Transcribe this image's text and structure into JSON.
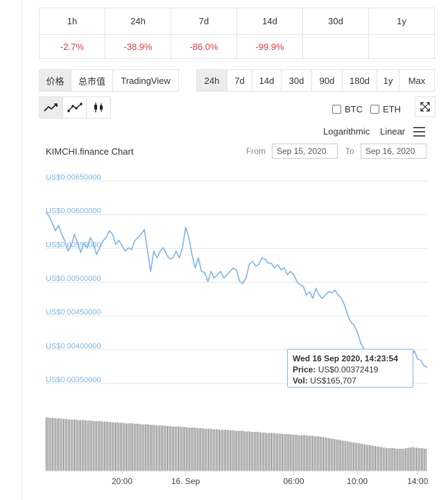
{
  "performance": {
    "periods": [
      "1h",
      "24h",
      "7d",
      "14d",
      "30d",
      "1y"
    ],
    "changes": [
      "-2.7%",
      "-38.9%",
      "-86.0%",
      "-99.9%",
      "",
      ""
    ]
  },
  "view_tabs": [
    "价格",
    "总市值",
    "TradingView"
  ],
  "range_tabs": [
    "24h",
    "7d",
    "14d",
    "30d",
    "90d",
    "180d",
    "1y",
    "Max"
  ],
  "chart_types": [
    "line-chart-icon",
    "line-points-chart-icon",
    "candlestick-chart-icon"
  ],
  "compare": {
    "btc": "BTC",
    "eth": "ETH"
  },
  "scale": {
    "log": "Logarithmic",
    "linear": "Linear"
  },
  "chart_title": "KIMCHI.finance Chart",
  "date_range": {
    "from_label": "From",
    "from": "Sep 15, 2020",
    "to_label": "To",
    "to": "Sep 16, 2020"
  },
  "tooltip": {
    "date": "Wed 16 Sep 2020, 14:23:54",
    "price_label": "Price:",
    "price": "US$0.00372419",
    "vol_label": "Vol:",
    "vol": "US$165,707"
  },
  "colors": {
    "line": "#7cb5ec",
    "negative": "#e23d3d",
    "volume": "#666666"
  },
  "chart_data": {
    "type": "line",
    "x_axis": {
      "ticks": [
        "20:00",
        "16. Sep",
        "06:00",
        "10:00",
        "14:00"
      ]
    },
    "y_axis": {
      "ticks": [
        "US$0.00650000",
        "US$0.00600000",
        "US$0.00550000",
        "US$0.00500000",
        "US$0.00450000",
        "US$0.00400000",
        "US$0.00350000"
      ],
      "ylim": [
        0.0035,
        0.0065
      ]
    },
    "series": [
      {
        "x_hours": [
          0,
          0.2,
          0.4,
          0.6,
          0.8,
          1.0,
          1.2,
          1.4,
          1.6,
          1.8,
          2.0,
          2.2,
          2.4,
          2.6,
          2.8,
          3.0,
          3.2,
          3.4,
          3.6,
          3.8,
          4.0,
          4.2,
          4.4,
          4.6,
          4.8,
          5.0,
          5.2,
          5.4,
          5.6,
          5.8,
          6.0,
          6.2,
          6.4,
          6.6,
          6.8,
          7.0,
          7.2,
          7.4,
          7.6,
          7.8,
          8.0,
          8.2,
          8.4,
          8.6,
          8.8,
          9.0,
          9.2,
          9.4,
          9.6,
          9.8,
          10.0,
          10.2,
          10.4,
          10.6,
          10.8,
          11.0,
          11.2,
          11.4,
          11.6,
          11.8,
          12.0,
          12.2,
          12.4,
          12.6,
          12.8,
          13.0,
          13.2,
          13.4,
          13.6,
          13.8,
          14.0,
          14.2,
          14.4,
          14.6,
          14.8,
          15.0,
          15.2,
          15.4,
          15.6,
          15.8,
          16.0,
          16.2,
          16.4,
          16.6,
          16.8,
          17.0,
          17.2,
          17.4,
          17.6,
          17.8,
          18.0,
          18.2,
          18.4,
          18.6,
          18.8,
          19.0,
          19.2,
          19.4,
          19.6,
          19.8,
          20.0,
          20.2,
          20.4,
          20.6,
          20.8,
          21.0,
          21.2,
          21.4,
          21.6,
          21.8,
          22.0,
          22.2,
          22.4,
          22.6,
          22.8,
          23.0,
          23.2,
          23.4,
          23.6,
          23.8,
          24.0
        ],
        "values": [
          0.00598,
          0.00592,
          0.00582,
          0.0057,
          0.00578,
          0.00565,
          0.00555,
          0.0054,
          0.00548,
          0.00565,
          0.00552,
          0.00538,
          0.00552,
          0.00545,
          0.0056,
          0.00552,
          0.00535,
          0.00545,
          0.00555,
          0.0056,
          0.0057,
          0.00565,
          0.0055,
          0.00556,
          0.00548,
          0.0054,
          0.00545,
          0.00542,
          0.00555,
          0.0056,
          0.00565,
          0.00572,
          0.0054,
          0.0051,
          0.0054,
          0.0053,
          0.0054,
          0.00545,
          0.00535,
          0.00528,
          0.0053,
          0.0054,
          0.0053,
          0.00545,
          0.00575,
          0.0056,
          0.00535,
          0.00515,
          0.0053,
          0.0051,
          0.00508,
          0.00495,
          0.0051,
          0.005,
          0.00505,
          0.0051,
          0.005,
          0.00505,
          0.0051,
          0.00515,
          0.00512,
          0.00495,
          0.00492,
          0.005,
          0.0052,
          0.00525,
          0.00518,
          0.0052,
          0.0053,
          0.00528,
          0.00522,
          0.00522,
          0.00515,
          0.0052,
          0.00512,
          0.00515,
          0.00505,
          0.0051,
          0.00505,
          0.00495,
          0.0049,
          0.00488,
          0.00475,
          0.0048,
          0.0047,
          0.00485,
          0.00475,
          0.0047,
          0.00475,
          0.0048,
          0.00478,
          0.00482,
          0.00475,
          0.0047,
          0.0046,
          0.00445,
          0.00435,
          0.0043,
          0.0042,
          0.00405,
          0.00395,
          0.0039,
          0.00385,
          0.0038,
          0.00375,
          0.0037,
          0.00372,
          0.00375,
          0.00378,
          0.0037,
          0.00372,
          0.00375,
          0.00368,
          0.00372,
          0.00365,
          0.00385,
          0.00392,
          0.0038,
          0.00378,
          0.0037,
          0.00368
        ]
      }
    ],
    "volume_ratio": [
      0.99,
      0.98,
      0.98,
      0.97,
      0.97,
      0.96,
      0.96,
      0.95,
      0.95,
      0.95,
      0.94,
      0.94,
      0.94,
      0.93,
      0.93,
      0.92,
      0.92,
      0.92,
      0.91,
      0.91,
      0.9,
      0.9,
      0.9,
      0.89,
      0.89,
      0.88,
      0.88,
      0.88,
      0.87,
      0.87,
      0.86,
      0.86,
      0.86,
      0.85,
      0.85,
      0.84,
      0.84,
      0.84,
      0.83,
      0.83,
      0.82,
      0.82,
      0.82,
      0.81,
      0.81,
      0.8,
      0.8,
      0.8,
      0.79,
      0.79,
      0.78,
      0.78,
      0.78,
      0.77,
      0.77,
      0.76,
      0.76,
      0.76,
      0.75,
      0.75,
      0.74,
      0.74,
      0.74,
      0.73,
      0.73,
      0.72,
      0.72,
      0.72,
      0.71,
      0.71,
      0.7,
      0.7,
      0.7,
      0.69,
      0.69,
      0.68,
      0.68,
      0.68,
      0.67,
      0.67,
      0.66,
      0.66,
      0.66,
      0.65,
      0.65,
      0.64,
      0.64,
      0.63,
      0.62,
      0.61,
      0.6,
      0.59,
      0.58,
      0.57,
      0.56,
      0.55,
      0.54,
      0.53,
      0.52,
      0.51,
      0.5,
      0.49,
      0.48,
      0.47,
      0.46,
      0.45,
      0.44,
      0.43,
      0.42,
      0.42,
      0.42,
      0.41,
      0.41,
      0.41,
      0.42,
      0.43,
      0.44,
      0.43,
      0.42,
      0.42,
      0.41
    ]
  }
}
